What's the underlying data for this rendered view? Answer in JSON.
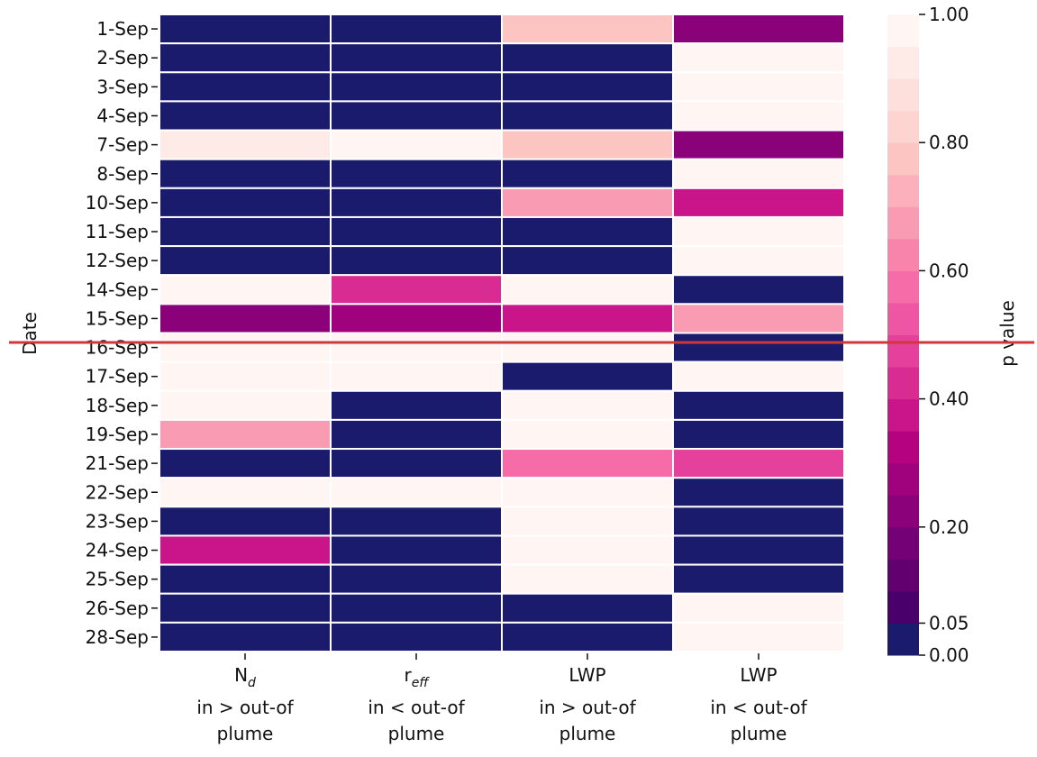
{
  "chart_data": {
    "type": "heatmap",
    "y_label": "Date",
    "colorbar_label": "p value",
    "rows": [
      "1-Sep",
      "2-Sep",
      "3-Sep",
      "4-Sep",
      "7-Sep",
      "8-Sep",
      "10-Sep",
      "11-Sep",
      "12-Sep",
      "14-Sep",
      "15-Sep",
      "16-Sep",
      "17-Sep",
      "18-Sep",
      "19-Sep",
      "21-Sep",
      "22-Sep",
      "23-Sep",
      "24-Sep",
      "25-Sep",
      "26-Sep",
      "28-Sep"
    ],
    "categories": [
      {
        "main": "N",
        "sub": "d",
        "lines": [
          "in > out-of",
          "plume"
        ]
      },
      {
        "main": "r",
        "sub": "eff",
        "lines": [
          "in < out-of",
          "plume"
        ]
      },
      {
        "main": "LWP",
        "lines": [
          "in > out-of",
          "plume"
        ]
      },
      {
        "main": "LWP",
        "lines": [
          "in < out-of",
          "plume"
        ]
      }
    ],
    "values": [
      [
        0.01,
        0.01,
        0.77,
        0.24
      ],
      [
        0.01,
        0.01,
        0.01,
        0.97
      ],
      [
        0.01,
        0.01,
        0.01,
        0.97
      ],
      [
        0.01,
        0.01,
        0.01,
        0.97
      ],
      [
        0.93,
        0.95,
        0.78,
        0.22
      ],
      [
        0.01,
        0.01,
        0.01,
        0.97
      ],
      [
        0.01,
        0.01,
        0.68,
        0.37
      ],
      [
        0.01,
        0.01,
        0.01,
        0.97
      ],
      [
        0.01,
        0.01,
        0.01,
        0.97
      ],
      [
        0.97,
        0.42,
        0.97,
        0.01
      ],
      [
        0.23,
        0.28,
        0.38,
        0.67
      ],
      [
        0.97,
        0.97,
        0.97,
        0.01
      ],
      [
        0.97,
        0.97,
        0.01,
        0.97
      ],
      [
        0.97,
        0.01,
        0.97,
        0.01
      ],
      [
        0.67,
        0.01,
        0.97,
        0.01
      ],
      [
        0.01,
        0.01,
        0.57,
        0.47
      ],
      [
        0.97,
        0.97,
        0.97,
        0.01
      ],
      [
        0.01,
        0.01,
        0.97,
        0.01
      ],
      [
        0.38,
        0.01,
        0.97,
        0.01
      ],
      [
        0.01,
        0.01,
        0.97,
        0.01
      ],
      [
        0.01,
        0.01,
        0.01,
        0.97
      ],
      [
        0.01,
        0.01,
        0.01,
        0.97
      ]
    ],
    "clim": [
      0,
      1
    ],
    "cticks": [
      {
        "value": 0,
        "label": "0.00"
      },
      {
        "value": 0.05,
        "label": "0.05"
      },
      {
        "value": 0.2,
        "label": "0.20"
      },
      {
        "value": 0.4,
        "label": "0.40"
      },
      {
        "value": 0.6,
        "label": "0.60"
      },
      {
        "value": 0.8,
        "label": "0.80"
      },
      {
        "value": 1,
        "label": "1.00"
      }
    ],
    "colors": [
      "#1b1b6e",
      "#4a006a",
      "#620070",
      "#750176",
      "#8a0179",
      "#a0017c",
      "#b5037f",
      "#c9148a",
      "#d92c93",
      "#e5409c",
      "#ee56a4",
      "#f66ca8",
      "#f884ac",
      "#f99cb3",
      "#fbb0bc",
      "#fcc5c2",
      "#fdd4d0",
      "#fde0dc",
      "#feebe8",
      "#fff6f3"
    ]
  }
}
